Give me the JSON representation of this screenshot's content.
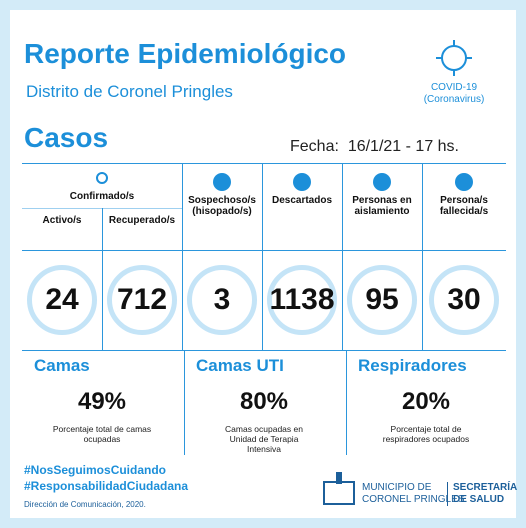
{
  "header": {
    "title": "Reporte Epidemiológico",
    "subtitle": "Distrito de Coronel Pringles",
    "badge_line1": "COVID-19",
    "badge_line2": "(Coronavirus)"
  },
  "cases": {
    "title": "Casos",
    "date_label": "Fecha:",
    "date": "16/1/21 - 17 hs.",
    "group": "Confirmado/s",
    "columns": [
      {
        "label": "Activo/s",
        "value": 24
      },
      {
        "label": "Recuperado/s",
        "value": 712
      },
      {
        "label": "Sospechoso/s (hisopado/s)",
        "value": 3
      },
      {
        "label": "Descartados",
        "value": 1138
      },
      {
        "label": "Personas en aislamiento",
        "value": 95
      },
      {
        "label": "Persona/s fallecida/s",
        "value": 30
      }
    ]
  },
  "resources": [
    {
      "title": "Camas",
      "value": "49%",
      "caption": "Porcentaje total de camas ocupadas"
    },
    {
      "title": "Camas UTI",
      "value": "80%",
      "caption": "Camas ocupadas en Unidad de Terapia Intensiva"
    },
    {
      "title": "Respiradores",
      "value": "20%",
      "caption": "Porcentaje total de respiradores ocupados"
    }
  ],
  "footer": {
    "hashtag1": "#NosSeguimosCuidando",
    "hashtag2": "#ResponsabilidadCiudadana",
    "credit": "Dirección de Comunicación, 2020.",
    "logo_line1": "MUNICIPIO DE",
    "logo_line2": "CORONEL PRINGLES",
    "dept_line1": "SECRETARÍA",
    "dept_line2": "DE SALUD"
  }
}
